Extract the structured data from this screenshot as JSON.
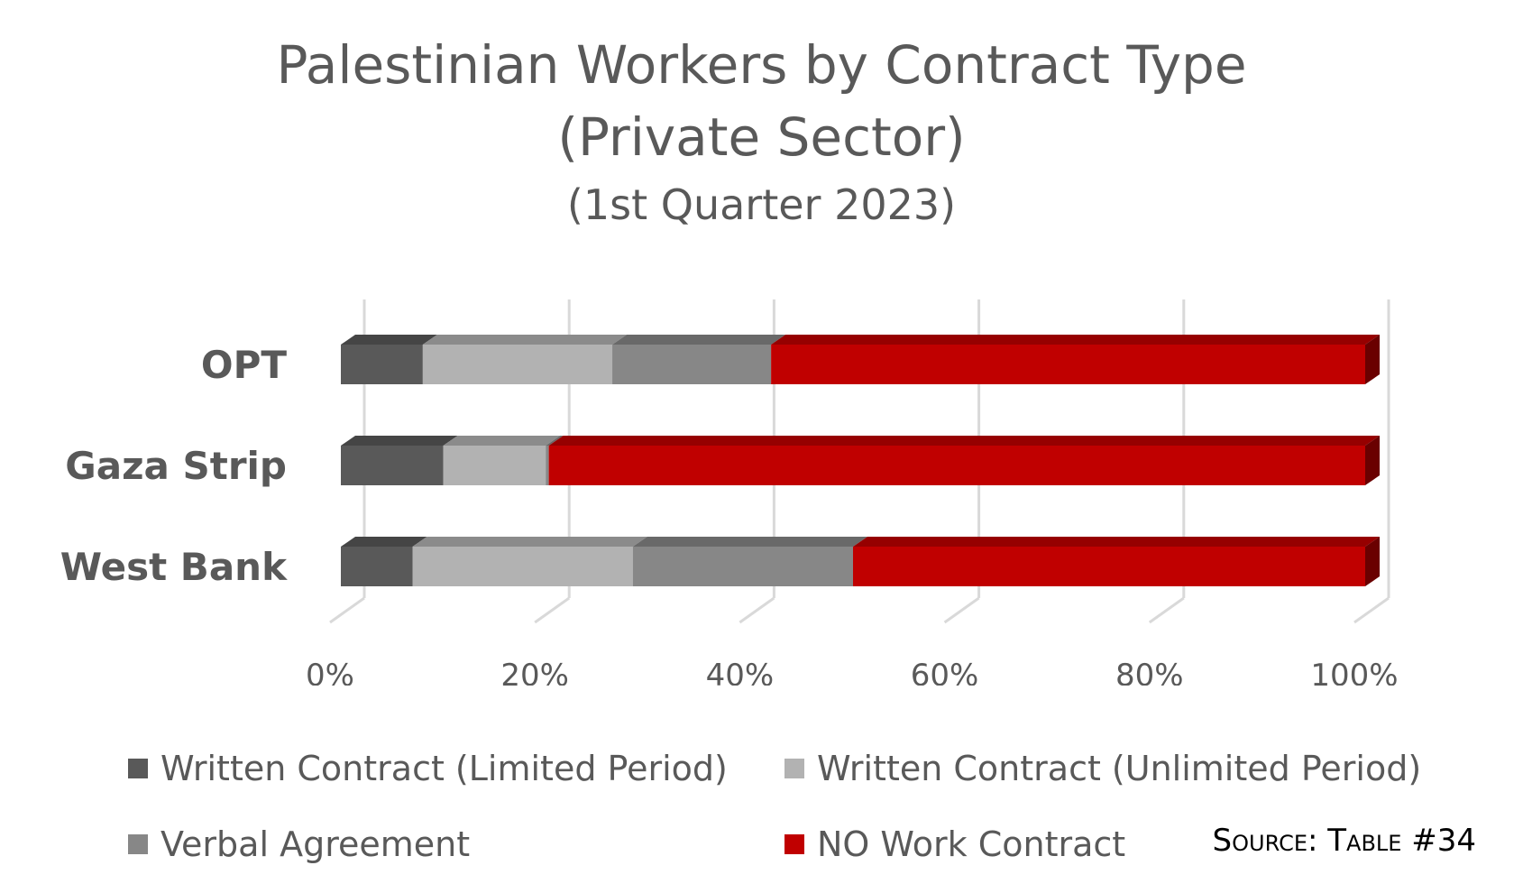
{
  "chart_data": {
    "type": "bar",
    "orientation": "horizontal",
    "stacked": "100%",
    "title": "Palestinian Workers by Contract Type",
    "title_line2": "(Private Sector)",
    "subtitle": "(1st Quarter 2023)",
    "categories": [
      "OPT",
      "Gaza Strip",
      "West Bank"
    ],
    "series": [
      {
        "name": "Written Contract (Limited Period)",
        "color": "#595959",
        "values": [
          8,
          10,
          7
        ]
      },
      {
        "name": "Written Contract (Unlimited Period)",
        "color": "#b2b2b2",
        "values": [
          18.5,
          10,
          21.5
        ]
      },
      {
        "name": "Verbal Agreement",
        "color": "#878787",
        "values": [
          15.5,
          0.3,
          21.5
        ]
      },
      {
        "name": "NO Work Contract",
        "color": "#c00000",
        "values": [
          58,
          79.7,
          50
        ]
      }
    ],
    "xticks": [
      "0%",
      "20%",
      "40%",
      "60%",
      "80%",
      "100%"
    ],
    "xlim": [
      0,
      100
    ],
    "grid": true,
    "legend_position": "bottom"
  },
  "source_note": "Source: Table #34"
}
